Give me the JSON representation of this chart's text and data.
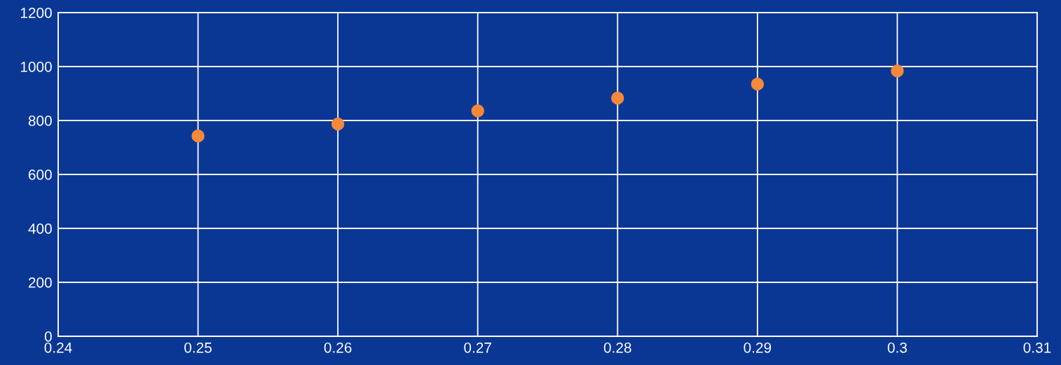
{
  "chart_data": {
    "type": "scatter",
    "x": [
      0.25,
      0.26,
      0.27,
      0.28,
      0.29,
      0.3
    ],
    "series": [
      {
        "color": "#f5893a",
        "values": [
          743,
          787,
          836,
          883,
          935,
          984
        ]
      }
    ],
    "xlim": [
      0.24,
      0.31
    ],
    "xticks": [
      0.24,
      0.25,
      0.26,
      0.27,
      0.28,
      0.29,
      0.3,
      0.31
    ],
    "ylim": [
      0,
      1200
    ],
    "yticks": [
      0,
      200,
      400,
      600,
      800,
      1000,
      1200
    ],
    "grid": true,
    "marker": "circle"
  }
}
